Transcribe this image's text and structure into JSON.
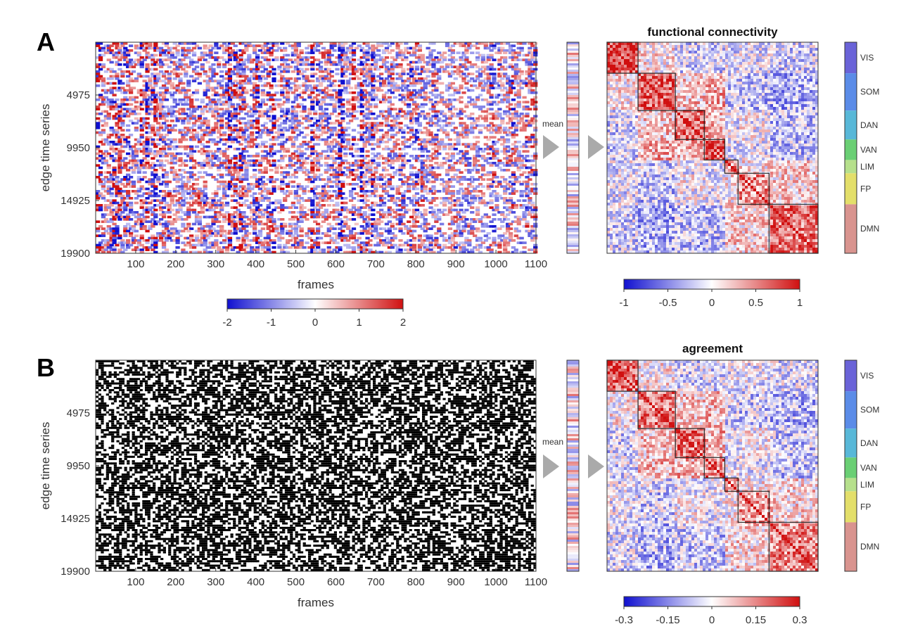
{
  "chart_data": [
    {
      "panel": "A",
      "type": "heatmap",
      "title": "",
      "xlabel": "frames",
      "ylabel": "edge time series",
      "xlim": [
        0,
        1100
      ],
      "ylim": [
        0,
        19900
      ],
      "xticks": [
        "100",
        "200",
        "300",
        "400",
        "500",
        "600",
        "700",
        "800",
        "900",
        "1000",
        "1100"
      ],
      "yticks": [
        "4975",
        "9950",
        "14925",
        "19900"
      ],
      "colorbar": {
        "min": -2,
        "max": 2,
        "ticks": [
          "-2",
          "-1",
          "0",
          "1",
          "2"
        ],
        "colors": [
          "#1010d0",
          "#ffffff",
          "#d01010"
        ]
      },
      "mean_label": "mean",
      "matrix": {
        "title": "functional connectivity",
        "colorbar": {
          "min": -1,
          "max": 1,
          "ticks": [
            "-1",
            "-0.5",
            "0",
            "0.5",
            "1"
          ],
          "colors": [
            "#1010d0",
            "#ffffff",
            "#d01010"
          ]
        }
      }
    },
    {
      "panel": "B",
      "type": "heatmap",
      "title": "",
      "xlabel": "frames",
      "ylabel": "edge time series",
      "xlim": [
        0,
        1100
      ],
      "ylim": [
        0,
        19900
      ],
      "xticks": [
        "100",
        "200",
        "300",
        "400",
        "500",
        "600",
        "700",
        "800",
        "900",
        "1000",
        "1100"
      ],
      "yticks": [
        "4975",
        "9950",
        "14925",
        "19900"
      ],
      "binary": true,
      "mean_label": "mean",
      "matrix": {
        "title": "agreement",
        "colorbar": {
          "min": -0.3,
          "max": 0.3,
          "ticks": [
            "-0.3",
            "-0.15",
            "0",
            "0.15",
            "0.3"
          ],
          "colors": [
            "#1010d0",
            "#ffffff",
            "#d01010"
          ]
        }
      }
    }
  ],
  "networks": [
    {
      "name": "VIS",
      "fraction": 0.147,
      "color": "#6a63d8"
    },
    {
      "name": "SOM",
      "fraction": 0.177,
      "color": "#5b8ce8"
    },
    {
      "name": "DAN",
      "fraction": 0.137,
      "color": "#58b8d8"
    },
    {
      "name": "VAN",
      "fraction": 0.097,
      "color": "#6acf74"
    },
    {
      "name": "LIM",
      "fraction": 0.063,
      "color": "#b6e08c"
    },
    {
      "name": "FP",
      "fraction": 0.147,
      "color": "#e3df6a"
    },
    {
      "name": "DMN",
      "fraction": 0.232,
      "color": "#d9948f"
    }
  ]
}
